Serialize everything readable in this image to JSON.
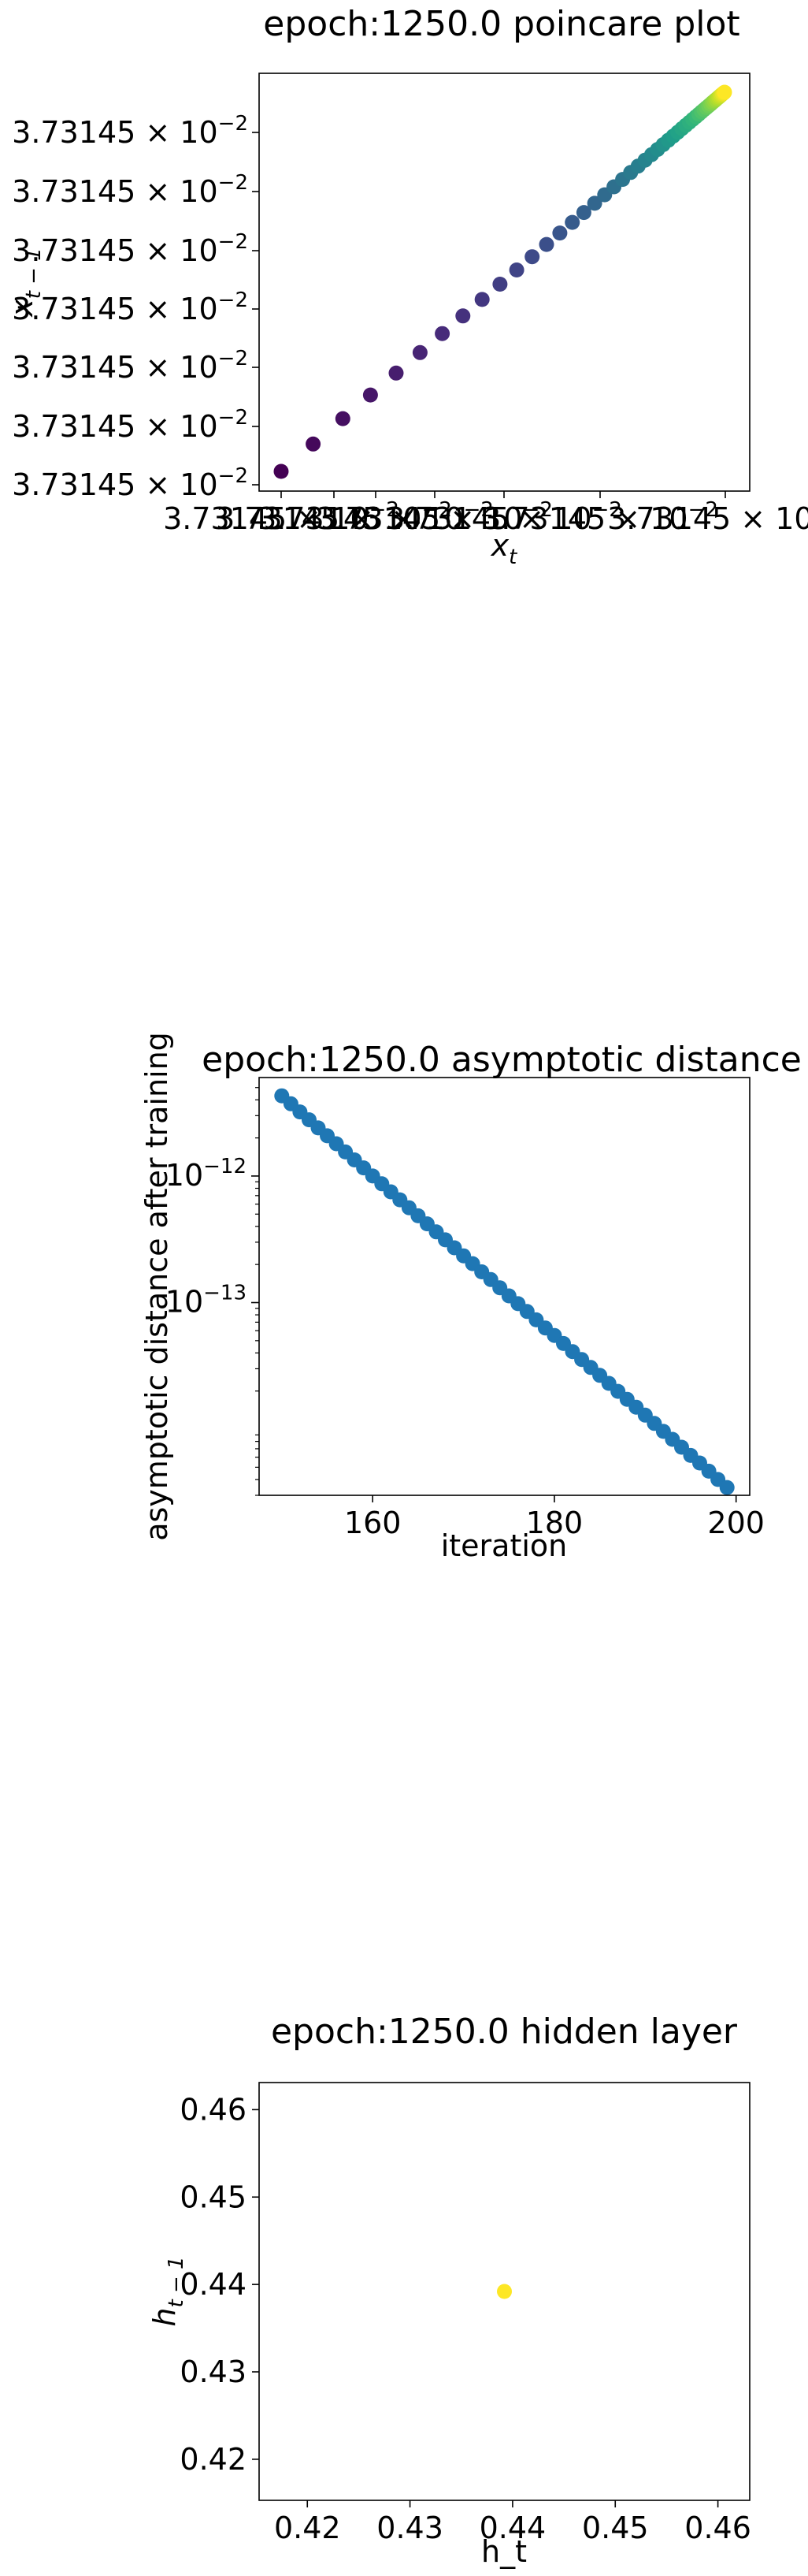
{
  "chart_data": [
    {
      "type": "scatter",
      "title": "epoch:1250.0 poincare plot",
      "xlabel_main": "x",
      "xlabel_sub": "t",
      "ylabel_main": "x",
      "ylabel_sub": "t − 1",
      "x_tick_labels": [
        "3.73145 × 10",
        "3.73145 × 10",
        "3.73145 × 10",
        "3.73145 × 10",
        "3.73145 × 10",
        "3.73145 × 10",
        "3.73145 × 10"
      ],
      "y_tick_labels": [
        "3.73145 × 10",
        "3.73145 × 10",
        "3.73145 × 10",
        "3.73145 × 10",
        "3.73145 × 10",
        "3.73145 × 10",
        "3.73145 × 10"
      ],
      "tick_exponent": "−2",
      "point_count": 50,
      "point_spacing_ratio": 0.93,
      "color_first": "#440154",
      "color_last": "#fde725",
      "grid": false,
      "legend": "none"
    },
    {
      "type": "scatter",
      "title": "epoch:1250.0 asymptotic distance",
      "xlabel": "iteration",
      "ylabel": "asymptotic distance after training",
      "x": [
        150,
        151,
        152,
        153,
        154,
        155,
        156,
        157,
        158,
        159,
        160,
        161,
        162,
        163,
        164,
        165,
        166,
        167,
        168,
        169,
        170,
        171,
        172,
        173,
        174,
        175,
        176,
        177,
        178,
        179,
        180,
        181,
        182,
        183,
        184,
        185,
        186,
        187,
        188,
        189,
        190,
        191,
        192,
        193,
        194,
        195,
        196,
        197,
        198,
        199
      ],
      "y": [
        4.3e-12,
        3.72e-12,
        3.21e-12,
        2.78e-12,
        2.4e-12,
        2.08e-12,
        1.8e-12,
        1.55e-12,
        1.34e-12,
        1.16e-12,
        1e-12,
        8.68e-13,
        7.5e-13,
        6.49e-13,
        5.61e-13,
        4.85e-13,
        4.19e-13,
        3.62e-13,
        3.13e-13,
        2.71e-13,
        2.34e-13,
        2.03e-13,
        1.75e-13,
        1.52e-13,
        1.31e-13,
        1.13e-13,
        9.8e-14,
        8.5e-14,
        7.3e-14,
        6.3e-14,
        5.5e-14,
        4.75e-14,
        4.1e-14,
        3.55e-14,
        3.07e-14,
        2.66e-14,
        2.3e-14,
        1.99e-14,
        1.72e-14,
        1.49e-14,
        1.29e-14,
        1.11e-14,
        9.6e-15,
        8.3e-15,
        7.2e-15,
        6.2e-15,
        5.4e-15,
        4.65e-15,
        4e-15,
        3.46e-15
      ],
      "x_ticks": [
        160,
        180,
        200
      ],
      "x_tick_labels": [
        "160",
        "180",
        "200"
      ],
      "y_scale": "log",
      "y_major_ticks": [
        1e-12,
        1e-13
      ],
      "y_tick_base": "10",
      "y_tick_exponents": [
        "−12",
        "−13"
      ],
      "xlim": [
        147.5,
        201.5
      ],
      "ylim": [
        3e-15,
        6e-12
      ],
      "marker_color": "#1f77b4",
      "grid": false,
      "legend": "none"
    },
    {
      "type": "scatter",
      "title": "epoch:1250.0 hidden layer",
      "xlabel": "h_t",
      "ylabel_main": "h",
      "ylabel_sub": "t − 1",
      "x": [
        0.4392
      ],
      "y": [
        0.4392
      ],
      "x_ticks": [
        0.42,
        0.43,
        0.44,
        0.45,
        0.46
      ],
      "x_tick_labels": [
        "0.42",
        "0.43",
        "0.44",
        "0.45",
        "0.46"
      ],
      "y_ticks": [
        0.42,
        0.43,
        0.44,
        0.45,
        0.46
      ],
      "y_tick_labels": [
        "0.42",
        "0.43",
        "0.44",
        "0.45",
        "0.46"
      ],
      "xlim": [
        0.4153,
        0.4631
      ],
      "ylim": [
        0.4153,
        0.4631
      ],
      "marker_color": "#fde725",
      "grid": false,
      "legend": "none"
    }
  ]
}
